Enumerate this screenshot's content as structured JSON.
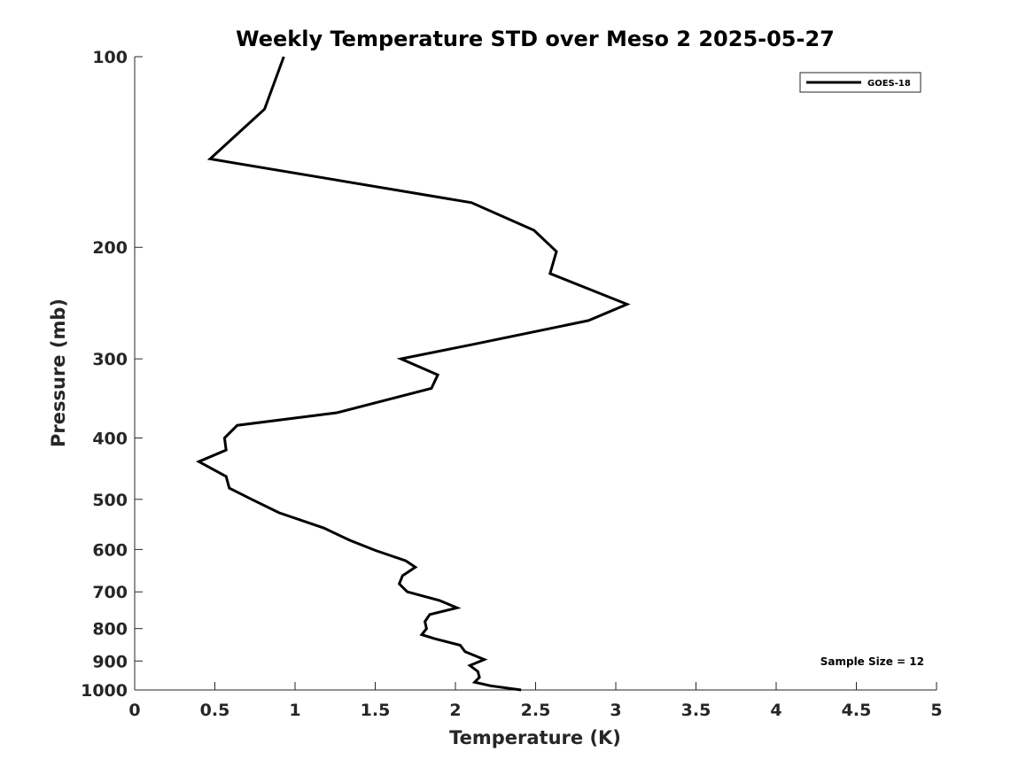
{
  "chart_data": {
    "type": "line",
    "title": "Weekly Temperature STD over Meso 2 2025-05-27",
    "xlabel": "Temperature (K)",
    "ylabel": "Pressure (mb)",
    "xlim": [
      0,
      5
    ],
    "ylim": [
      100,
      1000
    ],
    "y_scale": "log",
    "y_reversed": true,
    "xticks": [
      "0",
      "0.5",
      "1",
      "1.5",
      "2",
      "2.5",
      "3",
      "3.5",
      "4",
      "4.5",
      "5"
    ],
    "yticks": [
      "100",
      "200",
      "300",
      "400",
      "500",
      "600",
      "700",
      "800",
      "900",
      "1000"
    ],
    "grid": false,
    "legend_position": "top-right",
    "annotation": "Sample Size = 12",
    "series": [
      {
        "name": "GOES-18",
        "color": "#000000",
        "points": [
          [
            0.93,
            100
          ],
          [
            0.81,
            121
          ],
          [
            0.47,
            145
          ],
          [
            2.1,
            170
          ],
          [
            2.49,
            188
          ],
          [
            2.63,
            203
          ],
          [
            2.59,
            220
          ],
          [
            3.07,
            246
          ],
          [
            2.83,
            261
          ],
          [
            2.1,
            285
          ],
          [
            1.66,
            300
          ],
          [
            1.89,
            318
          ],
          [
            1.85,
            334
          ],
          [
            1.26,
            365
          ],
          [
            0.64,
            382
          ],
          [
            0.56,
            400
          ],
          [
            0.57,
            418
          ],
          [
            0.4,
            436
          ],
          [
            0.57,
            460
          ],
          [
            0.59,
            480
          ],
          [
            0.73,
            500
          ],
          [
            0.9,
            525
          ],
          [
            1.18,
            555
          ],
          [
            1.34,
            580
          ],
          [
            1.5,
            602
          ],
          [
            1.69,
            625
          ],
          [
            1.75,
            640
          ],
          [
            1.67,
            660
          ],
          [
            1.65,
            680
          ],
          [
            1.7,
            700
          ],
          [
            1.9,
            722
          ],
          [
            2.01,
            742
          ],
          [
            1.84,
            760
          ],
          [
            1.81,
            780
          ],
          [
            1.82,
            800
          ],
          [
            1.79,
            818
          ],
          [
            1.87,
            830
          ],
          [
            2.03,
            850
          ],
          [
            2.06,
            870
          ],
          [
            2.18,
            895
          ],
          [
            2.09,
            915
          ],
          [
            2.14,
            935
          ],
          [
            2.15,
            955
          ],
          [
            2.12,
            972
          ],
          [
            2.22,
            985
          ],
          [
            2.41,
            1000
          ]
        ]
      }
    ]
  }
}
